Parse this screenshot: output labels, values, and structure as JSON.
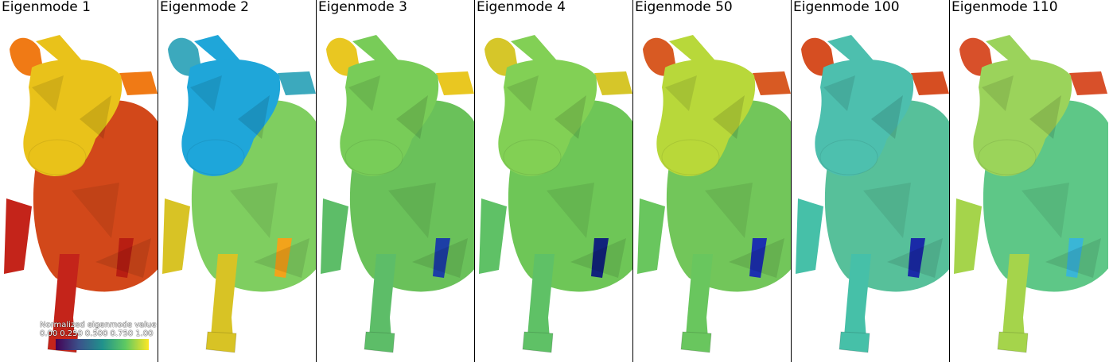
{
  "panels": [
    {
      "title": "Eigenmode 1",
      "head": "#e9c21a",
      "body": "#d2481a",
      "legs": "#c4241a",
      "accent": "#f07a15",
      "spot": "#b81e12"
    },
    {
      "title": "Eigenmode 2",
      "head": "#1fa6d9",
      "body": "#7fce60",
      "legs": "#d8c325",
      "accent": "#3ca9bd",
      "spot": "#f2a31b"
    },
    {
      "title": "Eigenmode 3",
      "head": "#78cc58",
      "body": "#6ac15a",
      "legs": "#5dbd68",
      "accent": "#e9c721",
      "spot": "#1c3fa6"
    },
    {
      "title": "Eigenmode 4",
      "head": "#82d055",
      "body": "#6ec657",
      "legs": "#5fc166",
      "accent": "#d6c629",
      "spot": "#11237c"
    },
    {
      "title": "Eigenmode 50",
      "head": "#b8d83a",
      "body": "#72c65a",
      "legs": "#69c65e",
      "accent": "#d85a23",
      "spot": "#1c2fb0"
    },
    {
      "title": "Eigenmode 100",
      "head": "#4dbfae",
      "body": "#57c09a",
      "legs": "#46c0a8",
      "accent": "#d64e22",
      "spot": "#1a2aa8"
    },
    {
      "title": "Eigenmode 110",
      "head": "#9bd35b",
      "body": "#5ec787",
      "legs": "#a5d44b",
      "accent": "#d8502a",
      "spot": "#3ab6d6"
    }
  ],
  "legend": {
    "title": "Normalized eigenmode value",
    "ticks": [
      "0.00",
      "0.250",
      "0.500",
      "0.750",
      "1.00"
    ],
    "colormap": [
      "#440154",
      "#3b528b",
      "#21918c",
      "#5ec962",
      "#fde725"
    ]
  }
}
